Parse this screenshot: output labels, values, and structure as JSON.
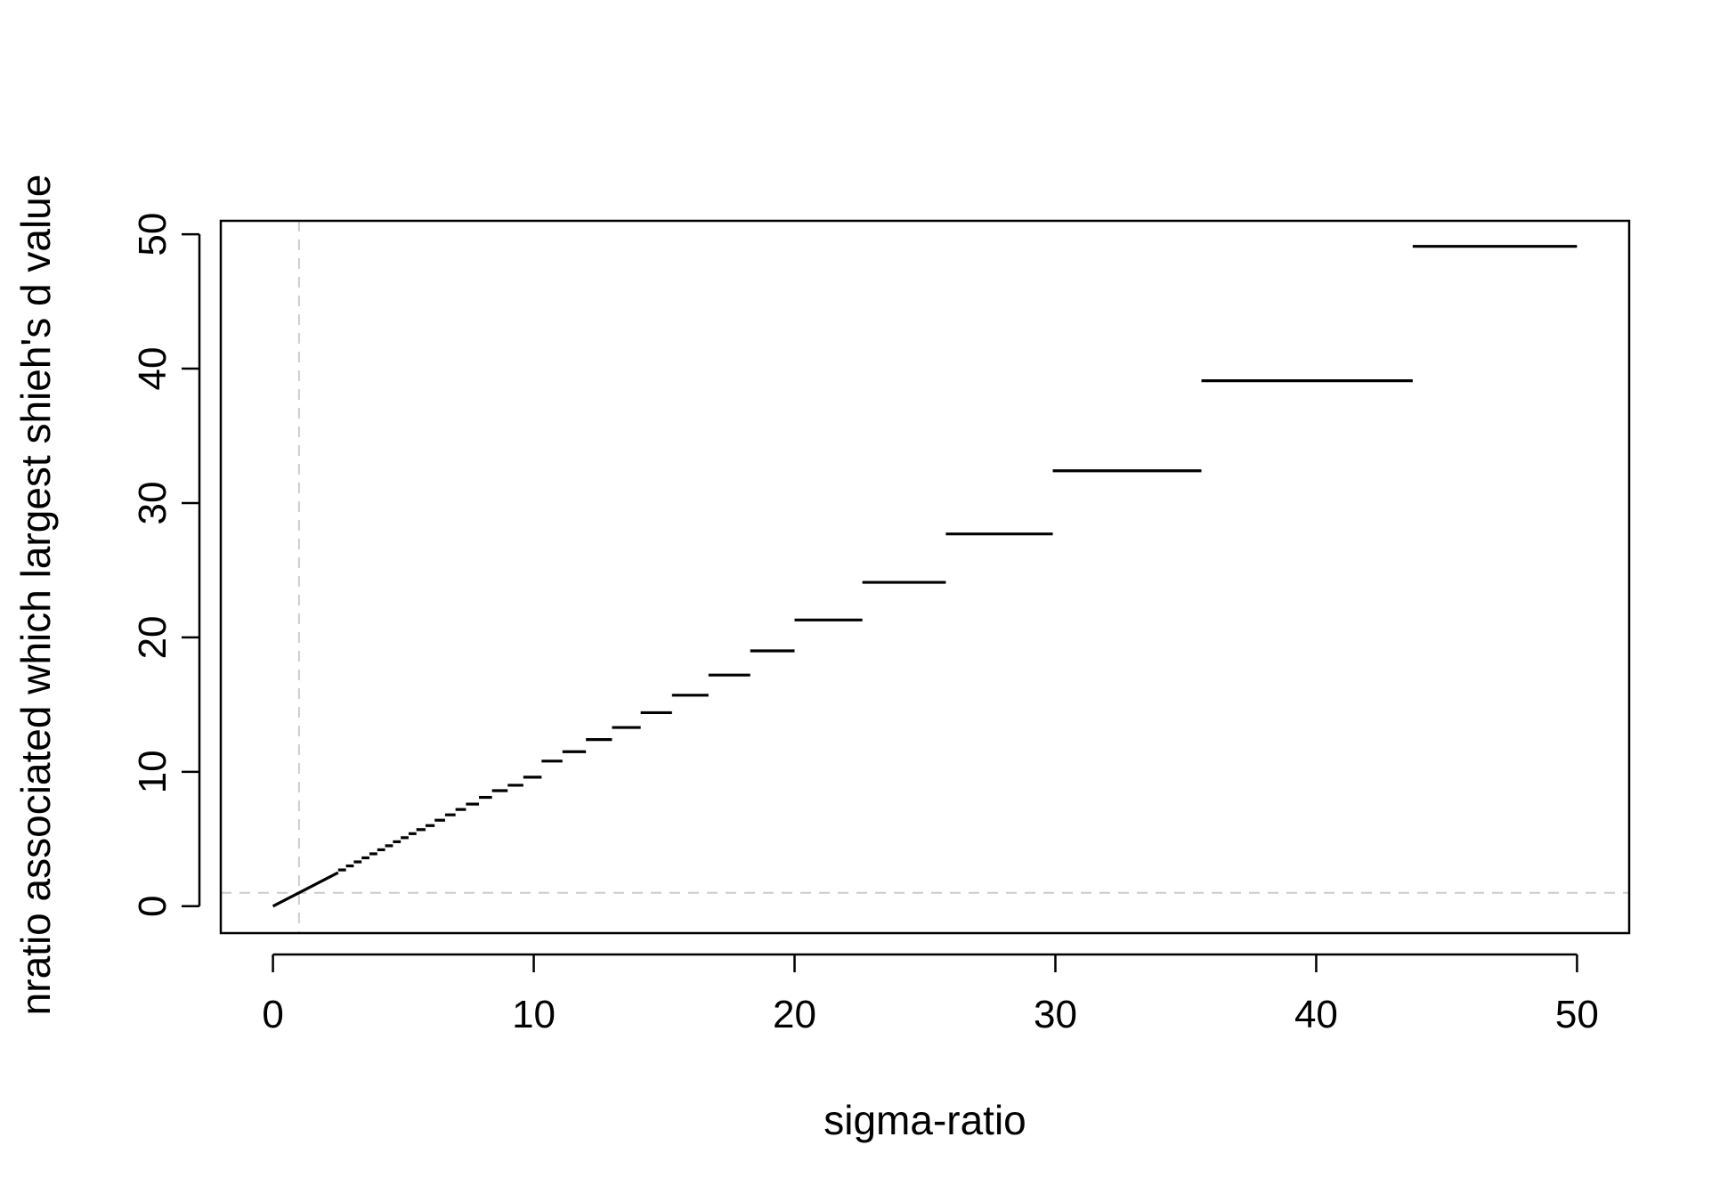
{
  "chart_data": {
    "type": "line",
    "title": "",
    "xlabel": "sigma-ratio",
    "ylabel": "nratio associated which largest shieh's d value",
    "xlim": [
      -2,
      52
    ],
    "ylim": [
      -2,
      51
    ],
    "xticks": [
      0,
      10,
      20,
      30,
      40,
      50
    ],
    "yticks": [
      0,
      10,
      20,
      30,
      40,
      50
    ],
    "grid": false,
    "reference_lines": [
      {
        "orientation": "vertical",
        "value": 1,
        "style": "dashed",
        "color": "#cccccc"
      },
      {
        "orientation": "horizontal",
        "value": 1,
        "style": "dashed",
        "color": "#cccccc"
      }
    ],
    "line_color": "#000000",
    "series": [
      {
        "x": [
          0.0,
          1.0,
          2.0,
          2.8,
          3.5,
          4.2,
          5.0,
          5.6,
          6.2,
          6.8,
          7.4,
          8.0,
          8.6,
          9.2,
          10.0,
          10.6,
          11.4,
          12.2,
          13.2,
          14.2,
          15.3,
          16.4,
          17.6,
          19.0,
          20.6,
          22.4,
          24.2,
          26.4,
          28.8,
          31.4,
          34.4,
          38.0,
          42.2,
          47.0,
          50.0
        ],
        "y": [
          0.0,
          1.0,
          2.0,
          2.8,
          3.5,
          4.2,
          5.0,
          5.6,
          6.2,
          6.8,
          7.4,
          8.0,
          8.6,
          9.2,
          10.0,
          10.6,
          11.4,
          12.2,
          13.2,
          14.2,
          15.3,
          16.4,
          17.6,
          19.0,
          20.6,
          22.4,
          24.2,
          26.4,
          28.8,
          31.4,
          34.4,
          38.0,
          42.2,
          47.0,
          50.0
        ]
      }
    ],
    "segments": [
      [
        0.0,
        2.5,
        0.0,
        2.5
      ],
      [
        2.5,
        2.8,
        2.7,
        2.7
      ],
      [
        2.8,
        3.1,
        3.0,
        3.0
      ],
      [
        3.1,
        3.4,
        3.3,
        3.3
      ],
      [
        3.4,
        3.7,
        3.6,
        3.6
      ],
      [
        3.7,
        4.0,
        3.9,
        3.9
      ],
      [
        4.0,
        4.3,
        4.2,
        4.2
      ],
      [
        4.3,
        4.6,
        4.5,
        4.5
      ],
      [
        4.6,
        4.9,
        4.8,
        4.8
      ],
      [
        4.9,
        5.2,
        5.1,
        5.1
      ],
      [
        5.2,
        5.5,
        5.4,
        5.4
      ],
      [
        5.5,
        5.85,
        5.7,
        5.7
      ],
      [
        5.85,
        6.2,
        6.0,
        6.0
      ],
      [
        6.2,
        6.6,
        6.4,
        6.4
      ],
      [
        6.6,
        7.0,
        6.8,
        6.8
      ],
      [
        7.0,
        7.4,
        7.2,
        7.2
      ],
      [
        7.4,
        7.9,
        7.6,
        7.6
      ],
      [
        7.9,
        8.4,
        8.1,
        8.1
      ],
      [
        8.4,
        9.0,
        8.6,
        8.6
      ],
      [
        9.0,
        9.6,
        9.0,
        9.0
      ],
      [
        9.6,
        10.3,
        9.6,
        9.6
      ],
      [
        10.3,
        11.1,
        10.8,
        10.8
      ],
      [
        11.1,
        12.0,
        11.5,
        11.5
      ],
      [
        12.0,
        13.0,
        12.4,
        12.4
      ],
      [
        13.0,
        14.1,
        13.3,
        13.3
      ],
      [
        14.1,
        15.3,
        14.4,
        14.4
      ],
      [
        15.3,
        16.7,
        15.7,
        15.7
      ],
      [
        16.7,
        18.3,
        17.2,
        17.2
      ],
      [
        18.3,
        20.0,
        19.0,
        19.0
      ],
      [
        20.0,
        22.6,
        21.3,
        21.3
      ],
      [
        22.6,
        25.8,
        24.1,
        24.1
      ],
      [
        25.8,
        29.9,
        27.7,
        27.7
      ],
      [
        29.9,
        35.6,
        32.4,
        32.4
      ],
      [
        35.6,
        43.7,
        39.1,
        39.1
      ],
      [
        43.7,
        50.0,
        49.1,
        49.1
      ]
    ]
  }
}
